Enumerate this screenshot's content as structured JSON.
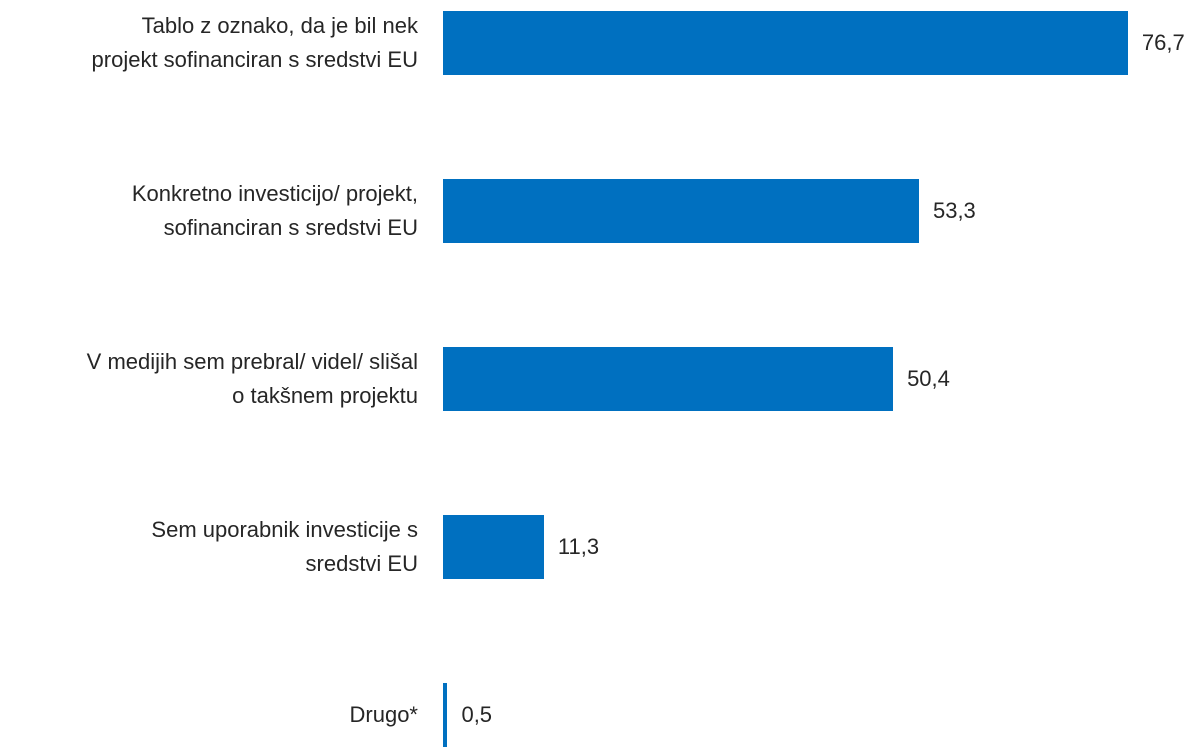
{
  "chart_data": {
    "type": "bar",
    "orientation": "horizontal",
    "color": "#0070c0",
    "categories": [
      "Tablo z oznako, da je bil nek\nprojekt sofinanciran s sredstvi EU",
      "Konkretno investicijo/ projekt,\nsofinanciran s sredstvi EU",
      "V medijih sem prebral/ videl/ slišal\no takšnem projektu",
      "Sem uporabnik investicije s\nsredstvi EU",
      "Drugo*"
    ],
    "values": [
      76.7,
      53.3,
      50.4,
      11.3,
      0.5
    ],
    "value_labels": [
      "76,7",
      "53,3",
      "50,4",
      "11,3",
      "0,5"
    ]
  }
}
